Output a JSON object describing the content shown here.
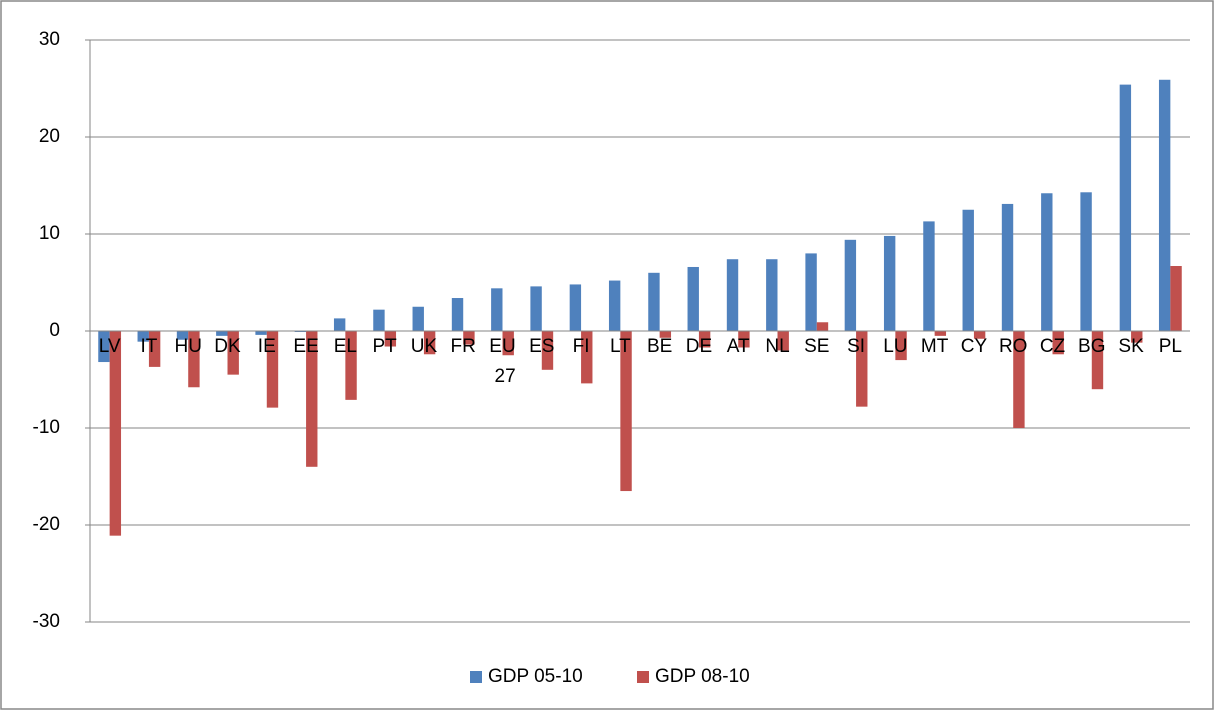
{
  "chart_data": {
    "type": "bar",
    "categories": [
      "LV",
      "IT",
      "HU",
      "DK",
      "IE",
      "EE",
      "EL",
      "PT",
      "UK",
      "FR",
      "EU 27",
      "ES",
      "FI",
      "LT",
      "BE",
      "DE",
      "AT",
      "NL",
      "SE",
      "SI",
      "LU",
      "MT",
      "CY",
      "RO",
      "CZ",
      "BG",
      "SK",
      "PL"
    ],
    "series": [
      {
        "name": "GDP 05-10",
        "color": "#4f81bd",
        "values": [
          -3.2,
          -1.1,
          -0.9,
          -0.5,
          -0.4,
          -0.1,
          1.3,
          2.2,
          2.5,
          3.4,
          4.4,
          4.6,
          4.8,
          5.2,
          6.0,
          6.6,
          7.4,
          7.4,
          8.0,
          9.4,
          9.8,
          11.3,
          12.5,
          13.1,
          14.2,
          14.3,
          25.4,
          25.9
        ]
      },
      {
        "name": "GDP 08-10",
        "color": "#c0504d",
        "values": [
          -21.1,
          -3.7,
          -5.8,
          -4.5,
          -7.9,
          -14.0,
          -7.1,
          -1.6,
          -2.4,
          -1.4,
          -2.5,
          -4.0,
          -5.4,
          -16.5,
          -0.7,
          -1.7,
          -1.7,
          -2.0,
          0.9,
          -7.8,
          -3.0,
          -0.5,
          -0.8,
          -10.0,
          -2.4,
          -6.0,
          -1.2,
          6.7
        ]
      }
    ],
    "ylim": [
      -30,
      30
    ],
    "yticks": [
      -30,
      -20,
      -10,
      0,
      10,
      20,
      30
    ],
    "grid": true,
    "legend": "bottom"
  }
}
